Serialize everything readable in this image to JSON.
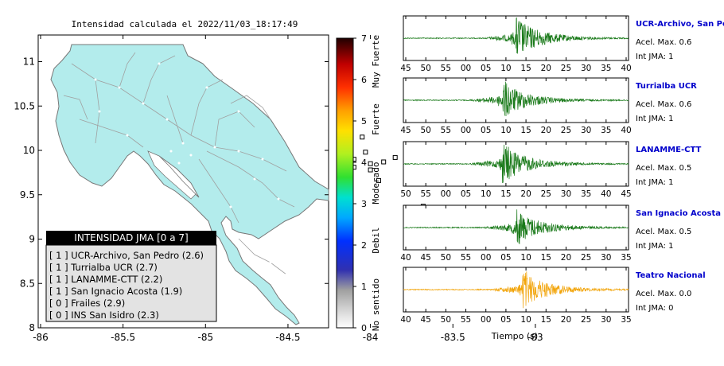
{
  "map": {
    "title": "Intensidad calculada el 2022/11/03_18:17:49",
    "y_ticks": [
      "11",
      "10.5",
      "10",
      "9.5",
      "9",
      "8.5",
      "8"
    ],
    "x_ticks": [
      "-86",
      "-85.5",
      "-85",
      "-84.5",
      "-84",
      "-83.5",
      "-83"
    ],
    "land_color": "#b3ecec",
    "station_markers": [
      {
        "lon": -84.05,
        "lat": 10.15
      },
      {
        "lon": -84.03,
        "lat": 9.98
      },
      {
        "lon": -83.85,
        "lat": 9.92
      },
      {
        "lon": -84.1,
        "lat": 9.9
      },
      {
        "lon": -83.92,
        "lat": 9.87
      },
      {
        "lon": -84.0,
        "lat": 9.85
      },
      {
        "lon": -84.1,
        "lat": 9.81
      },
      {
        "lon": -84.0,
        "lat": 9.78
      },
      {
        "lon": -83.95,
        "lat": 9.66
      },
      {
        "lon": -83.68,
        "lat": 9.37
      },
      {
        "lon": -84.15,
        "lat": 10.0
      }
    ]
  },
  "legend": {
    "title": "INTENSIDAD JMA [0 a 7]",
    "items": [
      {
        "text": "[ 1 ]  UCR-Archivo, San Pedro (2.6)"
      },
      {
        "text": "[ 1 ]  Turrialba UCR (2.7)"
      },
      {
        "text": "[ 1 ]  LANAMME-CTT (2.2)"
      },
      {
        "text": "[ 1 ]  San Ignacio Acosta (1.9)"
      },
      {
        "text": "[ 0 ]  Frailes (2.9)"
      },
      {
        "text": "[ 0 ]  INS San Isidro (2.3)"
      }
    ]
  },
  "colorbar": {
    "ticks": [
      "7",
      "6",
      "5",
      "4",
      "3",
      "2",
      "1",
      "0"
    ],
    "labels": [
      "Muy Fuerte",
      "Fuerte",
      "Moderado",
      "Debil",
      "No sentido"
    ]
  },
  "waveforms": [
    {
      "name": "UCR-Archivo, San Pedro",
      "accel": "Acel. Max. 0.6",
      "int": "Int JMA: 1",
      "color": "#1a7a1a",
      "ticks": [
        "45",
        "50",
        "55",
        "00",
        "05",
        "10",
        "15",
        "20",
        "25",
        "30",
        "35",
        "40"
      ],
      "event_at": 0.5,
      "amp": 1.0
    },
    {
      "name": "Turrialba UCR",
      "accel": "Acel. Max. 0.6",
      "int": "Int JMA: 1",
      "color": "#1a7a1a",
      "ticks": [
        "45",
        "50",
        "55",
        "00",
        "05",
        "10",
        "15",
        "20",
        "25",
        "30",
        "35",
        "40"
      ],
      "event_at": 0.44,
      "amp": 0.9
    },
    {
      "name": "LANAMME-CTT",
      "accel": "Acel. Max. 0.5",
      "int": "Int JMA: 1",
      "color": "#1a7a1a",
      "ticks": [
        "50",
        "55",
        "00",
        "05",
        "10",
        "15",
        "20",
        "25",
        "30",
        "35",
        "40",
        "45"
      ],
      "event_at": 0.44,
      "amp": 0.95
    },
    {
      "name": "San Ignacio Acosta",
      "accel": "Acel. Max. 0.5",
      "int": "Int JMA: 1",
      "color": "#1a7a1a",
      "ticks": [
        "40",
        "45",
        "50",
        "55",
        "00",
        "05",
        "10",
        "15",
        "20",
        "25",
        "30",
        "35"
      ],
      "event_at": 0.5,
      "amp": 0.85
    },
    {
      "name": "Teatro Nacional",
      "accel": "Acel. Max. 0.0",
      "int": "Int JMA: 0",
      "color": "#f2a50c",
      "ticks": [
        "40",
        "45",
        "50",
        "55",
        "00",
        "05",
        "10",
        "15",
        "20",
        "25",
        "30",
        "35"
      ],
      "event_at": 0.53,
      "amp": 0.9
    }
  ],
  "xlabel": "Tiempo (s)"
}
